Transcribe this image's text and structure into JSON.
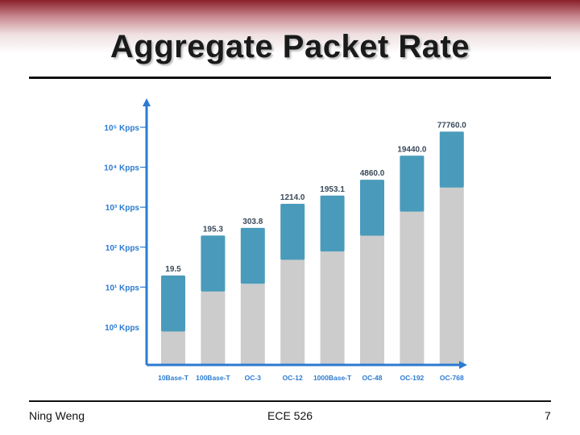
{
  "slide": {
    "title": "Aggregate Packet Rate",
    "footer_left": "Ning Weng",
    "footer_center": "ECE 526",
    "footer_right": "7"
  },
  "chart_data": {
    "type": "bar",
    "title": "",
    "xlabel": "",
    "ylabel": "",
    "y_scale": "log",
    "ylim": [
      1,
      100000
    ],
    "y_tick_labels": [
      "10⁰ Kpps",
      "10¹ Kpps",
      "10² Kpps",
      "10³ Kpps",
      "10⁴ Kpps",
      "10⁵ Kpps"
    ],
    "y_tick_values": [
      1,
      10,
      100,
      1000,
      10000,
      100000
    ],
    "categories": [
      "10Base-T",
      "100Base-T",
      "OC-3",
      "OC-12",
      "1000Base-T",
      "OC-48",
      "OC-192",
      "OC-768"
    ],
    "values": [
      19.5,
      195.3,
      303.8,
      1214.0,
      1953.1,
      4860.0,
      19440.0,
      77760.0
    ],
    "data_labels": [
      "19.5",
      "195.3",
      "303.8",
      "1214.0",
      "1953.1",
      "4860.0",
      "19440.0",
      "77760.0"
    ],
    "colors": {
      "bar_top": "#4a9bbb",
      "bar_base": "#cccccc",
      "axis": "#2b7bd1",
      "label": "#3a4a5a"
    }
  }
}
